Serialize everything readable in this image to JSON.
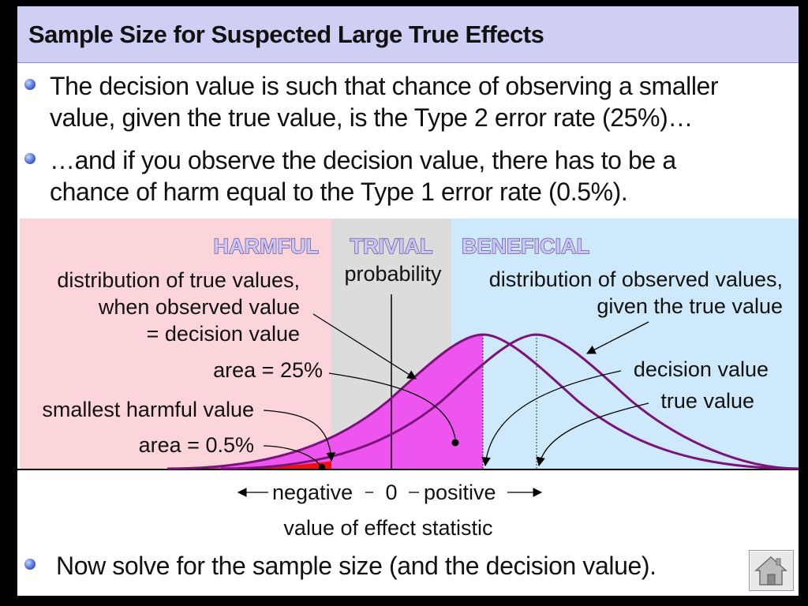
{
  "slide": {
    "title": "Sample Size for Suspected Large True Effects",
    "bullets": [
      [
        "The decision value is such that chance of observing a smaller",
        "value, given the true value, is the Type 2 error rate (25%)…"
      ],
      [
        "…and if you observe the decision value, there has to be a",
        "chance of harm equal to the Type 1 error rate (0.5%)."
      ]
    ],
    "final_bullet": "Now solve for the sample size (and the decision value)."
  },
  "diagram": {
    "regions": {
      "harmful": "HARMFUL",
      "trivial": "TRIVIAL",
      "beneficial": "BENEFICIAL",
      "trivial_sub": "probability"
    },
    "labels": {
      "true_dist": [
        "distribution of true values,",
        "when observed value",
        "= decision value"
      ],
      "area_25": "area = 25%",
      "smallest_harmful": "smallest harmful value",
      "area_05": "area = 0.5%",
      "observed_dist": [
        "distribution of observed values,",
        "given the true value"
      ],
      "decision_value": "decision value",
      "true_value": "true value"
    },
    "axis": {
      "negative": "negative",
      "zero": "0",
      "positive": "positive",
      "title": "value of effect statistic"
    },
    "colors": {
      "harmful_bg": "#fbd5d9",
      "trivial_bg": "#dcdcdc",
      "beneficial_bg": "#cde9fb",
      "curve": "#7a137a",
      "area_25_fill": "#ee55ee",
      "area_05_fill": "#ee1111"
    }
  },
  "home_button": {
    "icon": "home-icon"
  }
}
